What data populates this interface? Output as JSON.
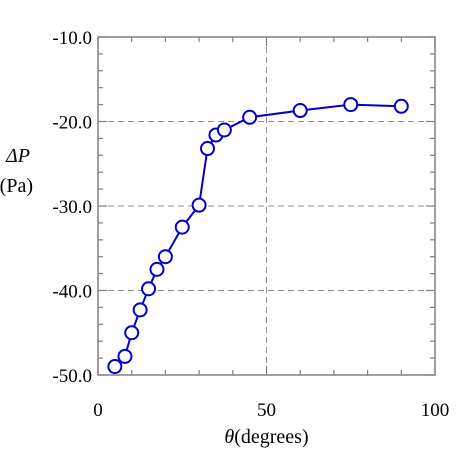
{
  "chart_data": {
    "type": "line",
    "xlabel_symbol": "θ",
    "xlabel_rest": "(degrees)",
    "ylabel_symbol": "ΔP",
    "ylabel_unit": "(Pa)",
    "xlim": [
      0,
      100
    ],
    "ylim": [
      -50,
      -10
    ],
    "x_ticks": [
      0,
      50,
      100
    ],
    "x_tick_labels": [
      "0",
      "50",
      "100"
    ],
    "y_ticks": [
      -10,
      -20,
      -30,
      -40,
      -50
    ],
    "y_tick_labels": [
      "-10.0",
      "-20.0",
      "-30.0",
      "-40.0",
      "-50.0"
    ],
    "grid": "dashed lines at x=50 and y=-20, -30, -40",
    "series": [
      {
        "x": [
          5,
          8,
          10,
          12.5,
          15,
          17.5,
          20,
          25,
          30,
          32.5,
          35,
          37.5,
          45,
          60,
          75,
          90
        ],
        "y": [
          -49.0,
          -47.8,
          -45.0,
          -42.3,
          -39.8,
          -37.5,
          -36.0,
          -32.5,
          -29.9,
          -23.2,
          -21.6,
          -21.0,
          -19.5,
          -18.7,
          -18.0,
          -18.2
        ],
        "color": "#0000cc",
        "marker": "open-circle"
      }
    ]
  }
}
